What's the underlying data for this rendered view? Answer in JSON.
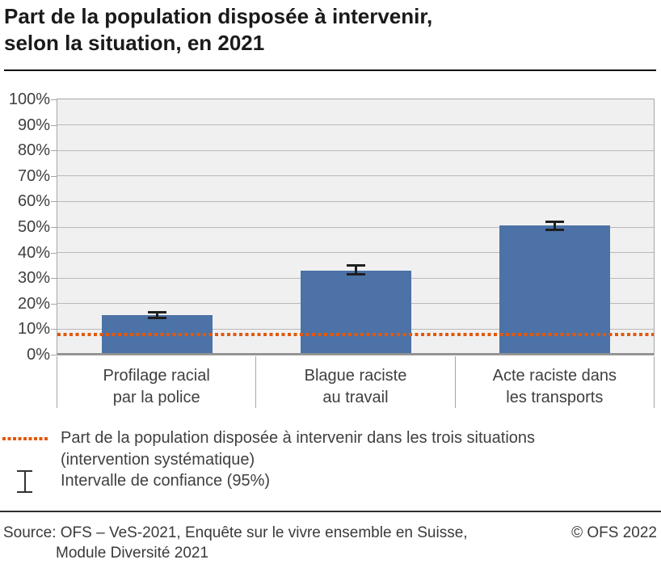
{
  "title": {
    "line1": "Part de la population disposée à intervenir,",
    "line2": "selon la situation, en 2021"
  },
  "chart_data": {
    "type": "bar",
    "categories": [
      "Profilage racial\npar la police",
      "Blague raciste\nau travail",
      "Acte raciste dans\nles transports"
    ],
    "values": [
      15.5,
      33,
      50.5
    ],
    "confidence_intervals": [
      [
        14,
        17
      ],
      [
        31,
        35.5
      ],
      [
        48.5,
        52.5
      ]
    ],
    "reference_line": {
      "value": 8
    },
    "ylim": [
      0,
      100
    ],
    "ytick_step": 10,
    "yticklabels": [
      "0%",
      "10%",
      "20%",
      "30%",
      "40%",
      "50%",
      "60%",
      "70%",
      "80%",
      "90%",
      "100%"
    ],
    "grid": true,
    "legend_position": "bottom",
    "colors": {
      "bar": "#4c72a7",
      "reference_line": "#e2580c",
      "error_bar": "#1f1f1f",
      "plot_background": "#f0f0f0",
      "gridline": "#b9b9b9"
    }
  },
  "legend": {
    "items": [
      {
        "symbol": "dotted-line",
        "label": "Part de la population disposée à intervenir dans les trois situations (intervention systématique)"
      },
      {
        "symbol": "error-bar",
        "label": "Intervalle de confiance (95%)"
      }
    ]
  },
  "footer": {
    "source_line1": "Source: OFS – VeS-2021, Enquête sur le vivre ensemble en Suisse,",
    "source_line2": "Module Diversité 2021",
    "copyright": "© OFS 2022"
  }
}
